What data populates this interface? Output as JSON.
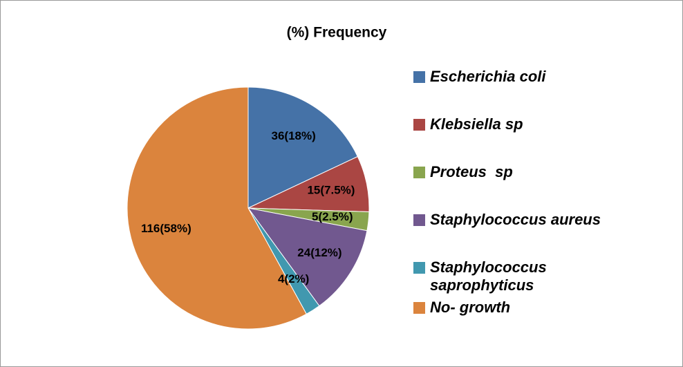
{
  "chart_data": {
    "type": "pie",
    "title": "(%) Frequency",
    "categories": [
      "Escherichia coli",
      "Klebsiella sp",
      "Proteus  sp",
      "Staphylococcus aureus",
      "Staphylococcus saprophyticus",
      "No- growth"
    ],
    "values": [
      36,
      15,
      5,
      24,
      4,
      116
    ],
    "value_labels": [
      "36(18%)",
      "15(7.5%)",
      "5(2.5%)",
      "24(12%)",
      "4(2%)",
      "116(58%)"
    ],
    "colors": [
      "#4572a7",
      "#aa4643",
      "#89a54e",
      "#71588f",
      "#4198af",
      "#db843d"
    ],
    "legend": "right"
  }
}
